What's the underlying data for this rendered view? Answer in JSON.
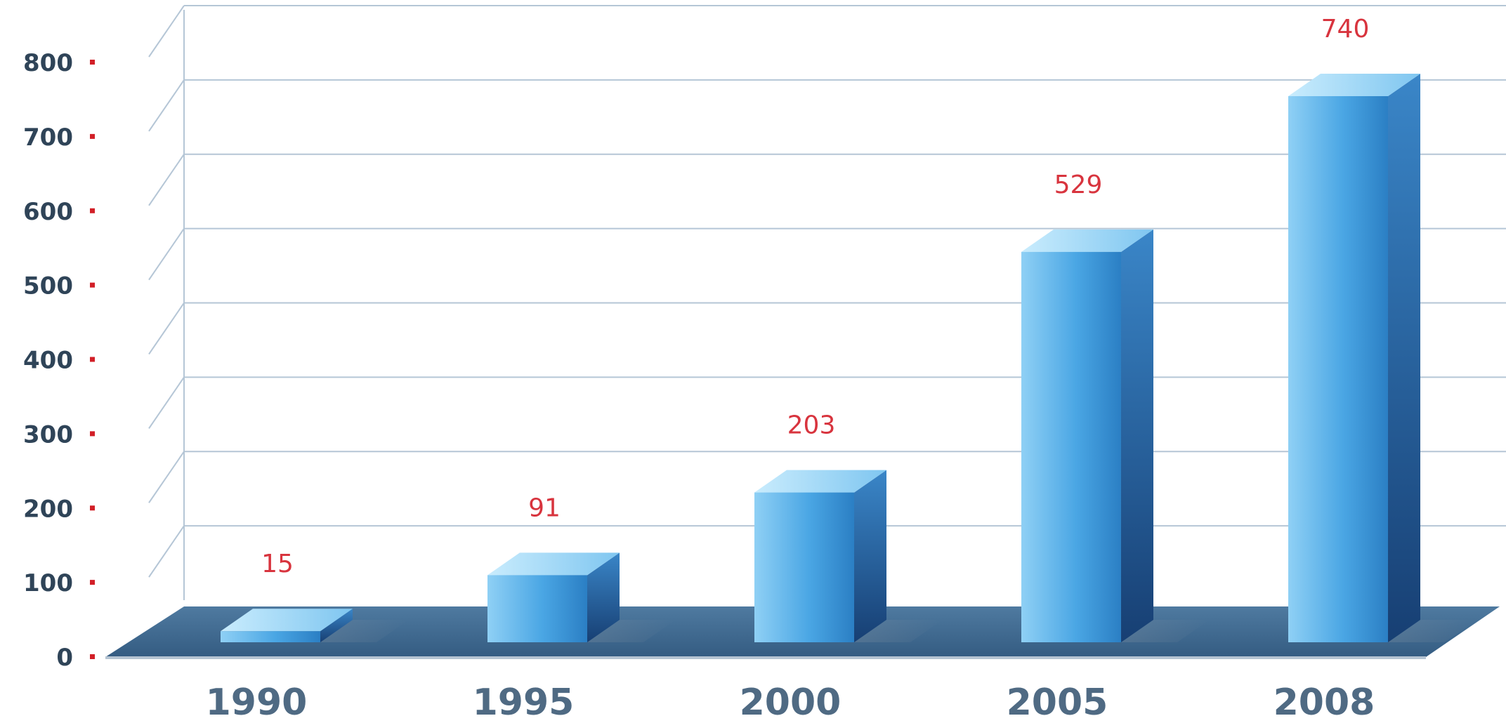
{
  "chart_data": {
    "type": "bar",
    "title": "",
    "xlabel": "",
    "ylabel": "",
    "categories": [
      "1990",
      "1995",
      "2000",
      "2005",
      "2008"
    ],
    "values": [
      15,
      91,
      203,
      529,
      740
    ],
    "data_labels": [
      "15",
      "91",
      "203",
      "529",
      "740"
    ],
    "ylim": [
      0,
      800
    ],
    "yticks": [
      0,
      100,
      200,
      300,
      400,
      500,
      600,
      700,
      800
    ],
    "ytick_labels": [
      "0",
      "100",
      "200",
      "300",
      "400",
      "500",
      "600",
      "700",
      "800"
    ],
    "grid": true,
    "legend": "none",
    "style": "3d",
    "colors": {
      "bar_light": "#8fd0f5",
      "bar_mid": "#4aa6e4",
      "bar_dark": "#2b7fc4",
      "bar_side": "#1d5c9e",
      "bar_top": "#b7e3fb",
      "floor": "#3f6990",
      "gridline": "#b5c6d6",
      "ytick_mark": "#d21f27",
      "data_label": "#d8343e",
      "ytick_text": "#2f4458",
      "xtick_text": "#4f6a83"
    }
  }
}
